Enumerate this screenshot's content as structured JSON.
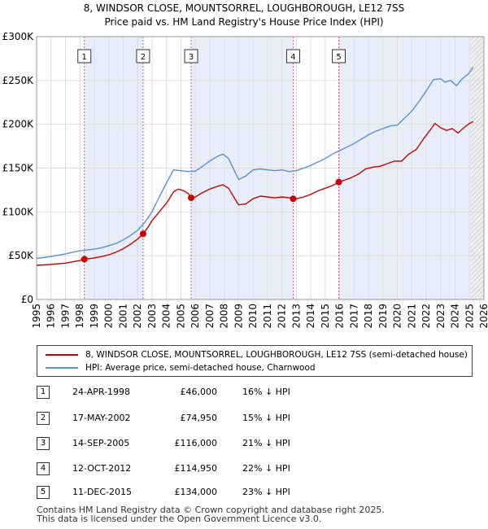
{
  "title": "8, WINDSOR CLOSE, MOUNTSORREL, LOUGHBOROUGH, LE12 7SS",
  "subtitle": "Price paid vs. HM Land Registry's House Price Index (HPI)",
  "chart_data": {
    "type": "line",
    "xlim": [
      1995,
      2026
    ],
    "ylim": [
      0,
      300000
    ],
    "x_ticks": [
      "1995",
      "1996",
      "1997",
      "1998",
      "1999",
      "2000",
      "2001",
      "2002",
      "2003",
      "2004",
      "2005",
      "2006",
      "2007",
      "2008",
      "2009",
      "2010",
      "2011",
      "2012",
      "2013",
      "2014",
      "2015",
      "2016",
      "2017",
      "2018",
      "2019",
      "2020",
      "2021",
      "2022",
      "2023",
      "2024",
      "2025",
      "2026"
    ],
    "y_ticks": [
      {
        "value": 0,
        "label": "£0"
      },
      {
        "value": 50000,
        "label": "£50K"
      },
      {
        "value": 100000,
        "label": "£100K"
      },
      {
        "value": 150000,
        "label": "£150K"
      },
      {
        "value": 200000,
        "label": "£200K"
      },
      {
        "value": 250000,
        "label": "£250K"
      },
      {
        "value": 300000,
        "label": "£300K"
      }
    ],
    "grid": true,
    "shaded_spans": [
      [
        1998.31,
        2002.38
      ],
      [
        2005.71,
        2012.78
      ],
      [
        2015.94,
        2025.1
      ]
    ],
    "hatched_after": 2025.1,
    "series": [
      {
        "name": "8, WINDSOR CLOSE, MOUNTSORREL, LOUGHBOROUGH, LE12 7SS (semi-detached house)",
        "color": "#cc0000",
        "points": [
          [
            1995.0,
            39000
          ],
          [
            1995.5,
            39500
          ],
          [
            1996.0,
            40000
          ],
          [
            1996.5,
            40800
          ],
          [
            1997.0,
            41500
          ],
          [
            1997.5,
            43000
          ],
          [
            1998.0,
            44500
          ],
          [
            1998.31,
            46000
          ],
          [
            1998.6,
            46500
          ],
          [
            1999.0,
            47500
          ],
          [
            1999.5,
            49000
          ],
          [
            2000.0,
            51000
          ],
          [
            2000.5,
            54000
          ],
          [
            2001.0,
            58000
          ],
          [
            2001.5,
            63000
          ],
          [
            2002.0,
            69000
          ],
          [
            2002.38,
            74950
          ],
          [
            2002.7,
            82000
          ],
          [
            2003.0,
            90000
          ],
          [
            2003.5,
            100000
          ],
          [
            2004.0,
            110000
          ],
          [
            2004.5,
            123000
          ],
          [
            2004.8,
            126000
          ],
          [
            2005.2,
            124000
          ],
          [
            2005.5,
            121000
          ],
          [
            2005.71,
            116000
          ],
          [
            2006.0,
            117000
          ],
          [
            2006.5,
            122000
          ],
          [
            2007.0,
            126000
          ],
          [
            2007.5,
            129000
          ],
          [
            2007.9,
            131000
          ],
          [
            2008.3,
            127000
          ],
          [
            2008.7,
            116000
          ],
          [
            2009.0,
            108000
          ],
          [
            2009.5,
            109000
          ],
          [
            2010.0,
            115000
          ],
          [
            2010.5,
            118000
          ],
          [
            2011.0,
            117000
          ],
          [
            2011.5,
            116000
          ],
          [
            2012.0,
            117000
          ],
          [
            2012.5,
            116000
          ],
          [
            2012.78,
            114950
          ],
          [
            2013.0,
            115000
          ],
          [
            2013.5,
            117000
          ],
          [
            2014.0,
            120000
          ],
          [
            2014.5,
            124000
          ],
          [
            2015.0,
            127000
          ],
          [
            2015.5,
            130000
          ],
          [
            2015.94,
            134000
          ],
          [
            2016.3,
            136000
          ],
          [
            2016.8,
            139000
          ],
          [
            2017.3,
            143000
          ],
          [
            2017.8,
            149000
          ],
          [
            2018.3,
            151000
          ],
          [
            2018.8,
            152000
          ],
          [
            2019.3,
            155000
          ],
          [
            2019.8,
            158000
          ],
          [
            2020.3,
            158000
          ],
          [
            2020.8,
            166000
          ],
          [
            2021.3,
            171000
          ],
          [
            2021.8,
            183000
          ],
          [
            2022.3,
            194000
          ],
          [
            2022.6,
            201000
          ],
          [
            2023.0,
            196000
          ],
          [
            2023.4,
            193000
          ],
          [
            2023.8,
            195000
          ],
          [
            2024.2,
            190000
          ],
          [
            2024.6,
            196000
          ],
          [
            2025.0,
            201000
          ],
          [
            2025.25,
            203000
          ]
        ]
      },
      {
        "name": "HPI: Average price, semi-detached house, Charnwood",
        "color": "#5b8fd6",
        "points": [
          [
            1995.0,
            47000
          ],
          [
            1995.5,
            47800
          ],
          [
            1996.0,
            49000
          ],
          [
            1996.5,
            50500
          ],
          [
            1997.0,
            52000
          ],
          [
            1997.5,
            54000
          ],
          [
            1998.0,
            55500
          ],
          [
            1998.5,
            56500
          ],
          [
            1999.0,
            57500
          ],
          [
            1999.5,
            59000
          ],
          [
            2000.0,
            61500
          ],
          [
            2000.5,
            64000
          ],
          [
            2001.0,
            68000
          ],
          [
            2001.5,
            73000
          ],
          [
            2002.0,
            79000
          ],
          [
            2002.5,
            88000
          ],
          [
            2003.0,
            100000
          ],
          [
            2003.5,
            117000
          ],
          [
            2004.0,
            133000
          ],
          [
            2004.5,
            148000
          ],
          [
            2005.0,
            147000
          ],
          [
            2005.5,
            146000
          ],
          [
            2006.0,
            146500
          ],
          [
            2006.5,
            152000
          ],
          [
            2007.0,
            158000
          ],
          [
            2007.5,
            163000
          ],
          [
            2007.9,
            166000
          ],
          [
            2008.3,
            161000
          ],
          [
            2008.7,
            147000
          ],
          [
            2009.0,
            137000
          ],
          [
            2009.5,
            141000
          ],
          [
            2010.0,
            148000
          ],
          [
            2010.5,
            149000
          ],
          [
            2011.0,
            148000
          ],
          [
            2011.5,
            147000
          ],
          [
            2012.0,
            148000
          ],
          [
            2012.5,
            146000
          ],
          [
            2013.0,
            147000
          ],
          [
            2013.5,
            150000
          ],
          [
            2014.0,
            153000
          ],
          [
            2014.5,
            157000
          ],
          [
            2015.0,
            161000
          ],
          [
            2015.5,
            166000
          ],
          [
            2016.0,
            170000
          ],
          [
            2016.5,
            174000
          ],
          [
            2017.0,
            178000
          ],
          [
            2017.5,
            183000
          ],
          [
            2018.0,
            188000
          ],
          [
            2018.5,
            192000
          ],
          [
            2019.0,
            195000
          ],
          [
            2019.5,
            198000
          ],
          [
            2020.0,
            199000
          ],
          [
            2020.5,
            207000
          ],
          [
            2021.0,
            215000
          ],
          [
            2021.5,
            226000
          ],
          [
            2022.0,
            238000
          ],
          [
            2022.5,
            251000
          ],
          [
            2023.0,
            252000
          ],
          [
            2023.3,
            248000
          ],
          [
            2023.7,
            250000
          ],
          [
            2024.1,
            244000
          ],
          [
            2024.5,
            252000
          ],
          [
            2024.9,
            257000
          ],
          [
            2025.25,
            265000
          ]
        ]
      }
    ],
    "sales": [
      {
        "num": "1",
        "x": 1998.31,
        "y": 46000
      },
      {
        "num": "2",
        "x": 2002.38,
        "y": 74950
      },
      {
        "num": "3",
        "x": 2005.71,
        "y": 116000
      },
      {
        "num": "4",
        "x": 2012.78,
        "y": 114950
      },
      {
        "num": "5",
        "x": 2015.94,
        "y": 134000
      }
    ]
  },
  "legend": {
    "property_label": "8, WINDSOR CLOSE, MOUNTSORREL, LOUGHBOROUGH, LE12 7SS (semi-detached house)",
    "hpi_label": "HPI: Average price, semi-detached house, Charnwood"
  },
  "sales_table": [
    {
      "num": "1",
      "date": "24-APR-1998",
      "price": "£46,000",
      "hpi": "16% ↓ HPI"
    },
    {
      "num": "2",
      "date": "17-MAY-2002",
      "price": "£74,950",
      "hpi": "15% ↓ HPI"
    },
    {
      "num": "3",
      "date": "14-SEP-2005",
      "price": "£116,000",
      "hpi": "21% ↓ HPI"
    },
    {
      "num": "4",
      "date": "12-OCT-2012",
      "price": "£114,950",
      "hpi": "22% ↓ HPI"
    },
    {
      "num": "5",
      "date": "11-DEC-2015",
      "price": "£134,000",
      "hpi": "23% ↓ HPI"
    }
  ],
  "footer": {
    "line1": "Contains HM Land Registry data © Crown copyright and database right 2025.",
    "line2": "This data is licensed under the Open Government Licence v3.0."
  }
}
